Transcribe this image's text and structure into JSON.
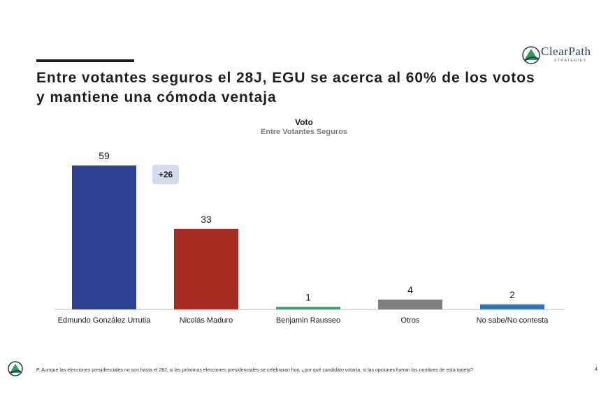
{
  "header": {
    "title": "Entre votantes seguros el 28J, EGU se acerca al 60% de los votos y mantiene una cómoda ventaja",
    "logo_name": "ClearPath",
    "logo_sub": "STRATEGIES"
  },
  "chart_data": {
    "type": "bar",
    "title": "Voto",
    "subtitle": "Entre Votantes Seguros",
    "categories": [
      "Edmundo González Urrutia",
      "Nicolás Maduro",
      "Benjamin Rausseo",
      "Otros",
      "No sabe/No contesta"
    ],
    "values": [
      59,
      33,
      1,
      4,
      2
    ],
    "colors": [
      "#2e4190",
      "#a62b22",
      "#3d9c6e",
      "#7f7f7f",
      "#2e75b6"
    ],
    "ylim": [
      0,
      60
    ],
    "annotation": "+26"
  },
  "footer": {
    "note": "P. Aunque las elecciones presidenciales no son hasta el 28J, si las próximas elecciones presidenciales se celebraran hoy, ¿por qué candidato votaría, si las opciones fueran los nombres de esta tarjeta?",
    "page": "4"
  }
}
